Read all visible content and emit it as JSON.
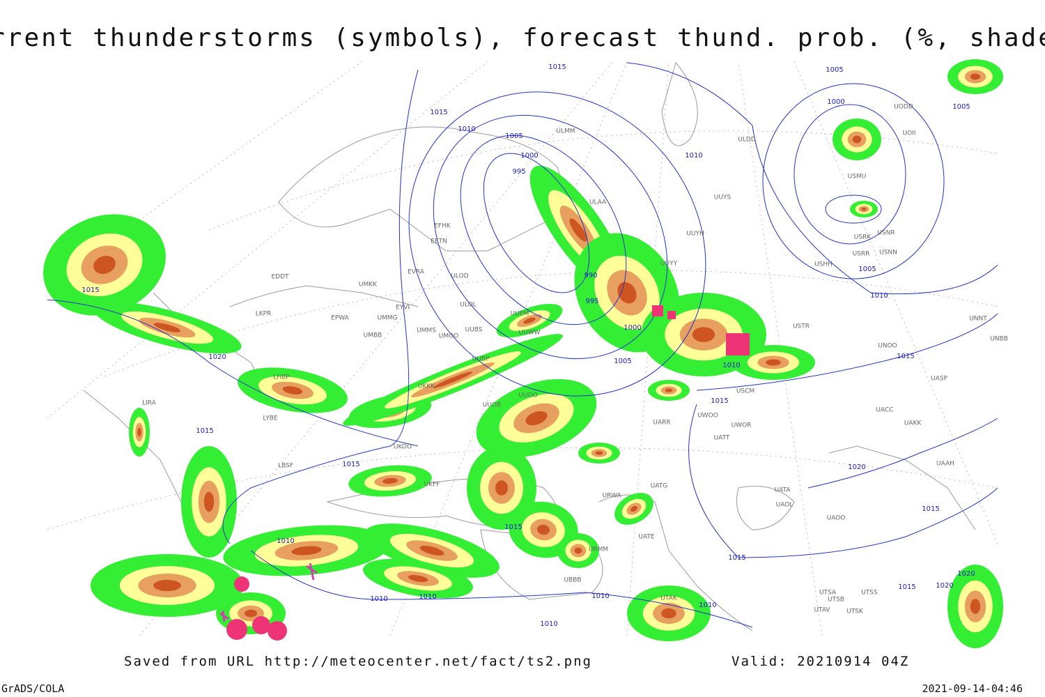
{
  "title": "Current thunderstorms (symbols), forecast thund. prob. (%, shaded)",
  "footer": {
    "saved": "Saved from URL http://meteocenter.net/fact/ts2.png",
    "valid": "Valid: 20210914 04Z",
    "software": "GrADS/COLA",
    "timestamp": "2021-09-14-04:46"
  },
  "isobar_labels": [
    1015,
    1005,
    1000,
    1005,
    1015,
    1010,
    1005,
    1000,
    995,
    1010,
    990,
    995,
    1000,
    1005,
    1010,
    1015,
    1005,
    1010,
    1015,
    1015,
    1020,
    1015,
    1015,
    1015,
    1020,
    1015,
    1015,
    1010,
    1010,
    1010,
    1010,
    1010,
    1010,
    1020,
    1020,
    1015
  ],
  "stations": [
    "ULMM",
    "ULAA",
    "UUYS",
    "UUYH",
    "UUYY",
    "ULDD",
    "UODD",
    "UOII",
    "USMU",
    "USRK",
    "USNR",
    "USRR",
    "USNN",
    "USHH",
    "EFHK",
    "EETN",
    "EVRA",
    "ULOD",
    "ULOL",
    "UMKK",
    "EDDT",
    "EYVI",
    "UMMG",
    "EPWA",
    "LKPR",
    "UMMS",
    "UMOO",
    "UUBS",
    "UUEM",
    "UUWW",
    "UMBB",
    "UUBP",
    "UKKK",
    "UUOO",
    "UUOB",
    "UKOO",
    "UKFF",
    "LBSF",
    "LYBE",
    "LIRA",
    "LHBP",
    "UATG",
    "URWA",
    "UATE",
    "UATT",
    "UWOO",
    "UWOR",
    "USCM",
    "UARR",
    "UAOL",
    "UATA",
    "UAOO",
    "UTSA",
    "UTSB",
    "UTSS",
    "UTAK",
    "UTAV",
    "UTSK",
    "USTR",
    "UNOO",
    "UAKK",
    "UACC",
    "UASP",
    "UAAH",
    "UNNT",
    "UNBB",
    "URMM",
    "UBBB"
  ]
}
